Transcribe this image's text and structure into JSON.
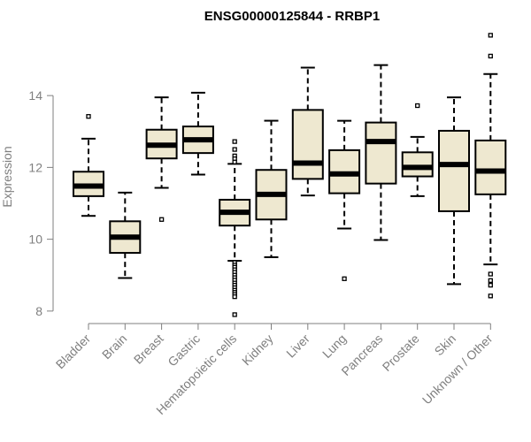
{
  "chart_data": {
    "type": "boxplot",
    "title": "ENSG00000125844 - RRBP1",
    "xlabel": "",
    "ylabel": "Expression",
    "ylim": [
      7.8,
      15.8
    ],
    "yticks": [
      8,
      10,
      12,
      14
    ],
    "colors": {
      "box_fill": "#EEE8D0",
      "stroke": "#000000",
      "axis": "#7f7f7f"
    },
    "categories": [
      "Bladder",
      "Brain",
      "Breast",
      "Gastric",
      "Hematopoietic cells",
      "Kidney",
      "Liver",
      "Lung",
      "Pancreas",
      "Prostate",
      "Skin",
      "Unknown / Other"
    ],
    "boxes": [
      {
        "name": "Bladder",
        "whisker_low": 10.65,
        "q1": 11.2,
        "median": 11.48,
        "q3": 11.88,
        "whisker_high": 12.8,
        "outliers": [
          13.42
        ]
      },
      {
        "name": "Brain",
        "whisker_low": 8.92,
        "q1": 9.62,
        "median": 10.06,
        "q3": 10.5,
        "whisker_high": 11.3,
        "outliers": []
      },
      {
        "name": "Breast",
        "whisker_low": 11.43,
        "q1": 12.25,
        "median": 12.62,
        "q3": 13.05,
        "whisker_high": 13.95,
        "outliers": [
          10.55
        ]
      },
      {
        "name": "Gastric",
        "whisker_low": 11.8,
        "q1": 12.4,
        "median": 12.77,
        "q3": 13.14,
        "whisker_high": 14.08,
        "outliers": []
      },
      {
        "name": "Hematopoietic cells",
        "whisker_low": 9.4,
        "q1": 10.38,
        "median": 10.75,
        "q3": 11.1,
        "whisker_high": 12.1,
        "outliers": [
          12.72,
          12.5,
          12.32,
          12.24,
          12.15,
          9.35,
          9.28,
          9.22,
          9.15,
          9.08,
          9.0,
          8.93,
          8.86,
          8.78,
          8.72,
          8.65,
          8.58,
          8.52,
          8.46,
          8.4,
          7.9
        ]
      },
      {
        "name": "Kidney",
        "whisker_low": 9.5,
        "q1": 10.55,
        "median": 11.25,
        "q3": 11.93,
        "whisker_high": 13.3,
        "outliers": []
      },
      {
        "name": "Liver",
        "whisker_low": 11.22,
        "q1": 11.68,
        "median": 12.12,
        "q3": 13.6,
        "whisker_high": 14.78,
        "outliers": []
      },
      {
        "name": "Lung",
        "whisker_low": 10.3,
        "q1": 11.28,
        "median": 11.82,
        "q3": 12.48,
        "whisker_high": 13.3,
        "outliers": [
          8.9
        ]
      },
      {
        "name": "Pancreas",
        "whisker_low": 9.98,
        "q1": 11.55,
        "median": 12.72,
        "q3": 13.25,
        "whisker_high": 14.85,
        "outliers": []
      },
      {
        "name": "Prostate",
        "whisker_low": 11.2,
        "q1": 11.75,
        "median": 12.0,
        "q3": 12.42,
        "whisker_high": 12.85,
        "outliers": [
          13.72
        ]
      },
      {
        "name": "Skin",
        "whisker_low": 8.75,
        "q1": 10.78,
        "median": 12.08,
        "q3": 13.02,
        "whisker_high": 13.95,
        "outliers": []
      },
      {
        "name": "Unknown / Other",
        "whisker_low": 9.3,
        "q1": 11.25,
        "median": 11.9,
        "q3": 12.75,
        "whisker_high": 14.6,
        "outliers": [
          15.68,
          15.1,
          9.03,
          8.85,
          8.72,
          8.42
        ]
      }
    ]
  }
}
